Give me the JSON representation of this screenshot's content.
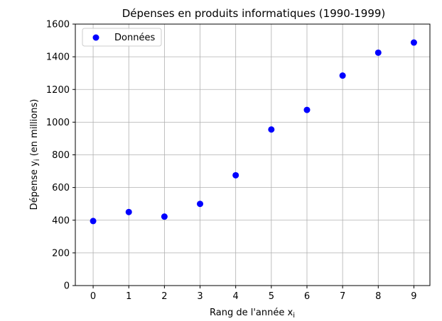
{
  "chart_data": {
    "type": "scatter",
    "title": "Dépenses en produits informatiques (1990-1999)",
    "xlabel": "Rang de l'année x",
    "xlabel_sub": "i",
    "ylabel": "Dépense y",
    "ylabel_sub": "i",
    "ylabel_suffix": " (en millions)",
    "xlim": [
      -0.5,
      9.45
    ],
    "ylim": [
      0,
      1600
    ],
    "xticks": [
      0,
      1,
      2,
      3,
      4,
      5,
      6,
      7,
      8,
      9
    ],
    "yticks": [
      0,
      200,
      400,
      600,
      800,
      1000,
      1200,
      1400,
      1600
    ],
    "grid": true,
    "legend_position": "top-left",
    "series": [
      {
        "name": "Données",
        "color": "#0000ff",
        "points": [
          {
            "x": 0,
            "y": 395
          },
          {
            "x": 1,
            "y": 450
          },
          {
            "x": 2,
            "y": 422
          },
          {
            "x": 3,
            "y": 500
          },
          {
            "x": 4,
            "y": 675
          },
          {
            "x": 5,
            "y": 955
          },
          {
            "x": 6,
            "y": 1075
          },
          {
            "x": 7,
            "y": 1285
          },
          {
            "x": 8,
            "y": 1425
          },
          {
            "x": 9,
            "y": 1487
          }
        ]
      }
    ]
  }
}
